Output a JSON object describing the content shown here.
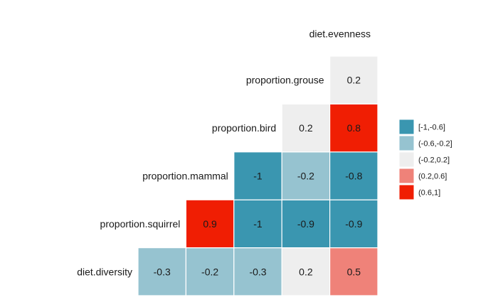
{
  "chart_data": {
    "type": "heatmap",
    "title": "",
    "subtitle": "",
    "variables": [
      "diet.diversity",
      "proportion.squirrel",
      "proportion.mammal",
      "proportion.bird",
      "proportion.grouse",
      "diet.evenness"
    ],
    "cells": [
      {
        "row": "diet.diversity",
        "col": "proportion.squirrel",
        "value": -0.3,
        "label": "-0.3"
      },
      {
        "row": "diet.diversity",
        "col": "proportion.mammal",
        "value": -0.2,
        "label": "-0.2"
      },
      {
        "row": "diet.diversity",
        "col": "proportion.bird",
        "value": -0.3,
        "label": "-0.3"
      },
      {
        "row": "diet.diversity",
        "col": "proportion.grouse",
        "value": 0.2,
        "label": "0.2"
      },
      {
        "row": "diet.diversity",
        "col": "diet.evenness",
        "value": 0.5,
        "label": "0.5"
      },
      {
        "row": "proportion.squirrel",
        "col": "proportion.mammal",
        "value": 0.9,
        "label": "0.9"
      },
      {
        "row": "proportion.squirrel",
        "col": "proportion.bird",
        "value": -1,
        "label": "-1"
      },
      {
        "row": "proportion.squirrel",
        "col": "proportion.grouse",
        "value": -0.9,
        "label": "-0.9"
      },
      {
        "row": "proportion.squirrel",
        "col": "diet.evenness",
        "value": -0.9,
        "label": "-0.9"
      },
      {
        "row": "proportion.mammal",
        "col": "proportion.bird",
        "value": -1,
        "label": "-1"
      },
      {
        "row": "proportion.mammal",
        "col": "proportion.grouse",
        "value": -0.2,
        "label": "-0.2"
      },
      {
        "row": "proportion.mammal",
        "col": "diet.evenness",
        "value": -0.8,
        "label": "-0.8"
      },
      {
        "row": "proportion.bird",
        "col": "proportion.grouse",
        "value": 0.2,
        "label": "0.2"
      },
      {
        "row": "proportion.bird",
        "col": "diet.evenness",
        "value": 0.8,
        "label": "0.8"
      },
      {
        "row": "proportion.grouse",
        "col": "diet.evenness",
        "value": 0.2,
        "label": "0.2"
      }
    ],
    "legend": {
      "position": "right",
      "entries": [
        {
          "label": "[-1,-0.6]",
          "color": "#3A96B0"
        },
        {
          "label": "(-0.6,-0.2]",
          "color": "#96C3D0"
        },
        {
          "label": "(-0.2,0.2]",
          "color": "#EEEEEE"
        },
        {
          "label": "(0.2,0.6]",
          "color": "#EF8279"
        },
        {
          "label": "(0.6,1]",
          "color": "#F01E03"
        }
      ]
    },
    "grid": false
  }
}
